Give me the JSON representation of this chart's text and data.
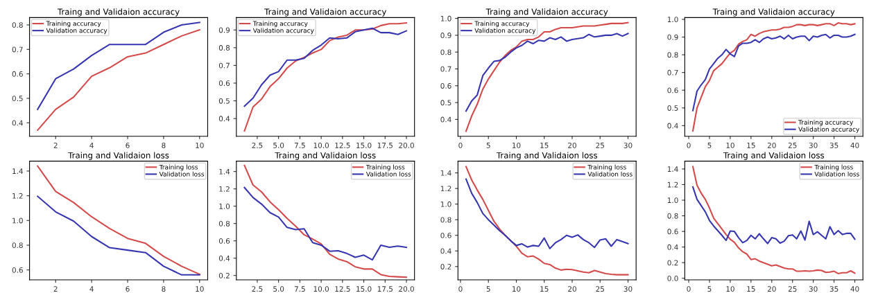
{
  "chart_data": [
    {
      "type": "line",
      "title": "Traing and Validaion accuracy",
      "x": [
        1,
        2,
        3,
        4,
        5,
        6,
        7,
        8,
        9,
        10
      ],
      "xlim": [
        0.55,
        10.45
      ],
      "ylim": [
        0.345,
        0.83
      ],
      "xticks": [
        2,
        4,
        6,
        8,
        10
      ],
      "yticks": [
        {
          "value": 0.4,
          "label": "0.4"
        },
        {
          "value": 0.5,
          "label": "0.5"
        },
        {
          "value": 0.6,
          "label": "0.6"
        },
        {
          "value": 0.7,
          "label": "0.7"
        },
        {
          "value": 0.8,
          "label": "0.8"
        }
      ],
      "legend": "top left",
      "grid": false,
      "series": [
        {
          "name": "Training accuracy",
          "color": "#d44a4a",
          "values": [
            0.37,
            0.455,
            0.505,
            0.59,
            0.625,
            0.67,
            0.685,
            0.72,
            0.755,
            0.78
          ]
        },
        {
          "name": "Validation accuracy",
          "color": "#3636b0",
          "values": [
            0.455,
            0.58,
            0.62,
            0.675,
            0.72,
            0.72,
            0.72,
            0.77,
            0.8,
            0.81
          ]
        }
      ]
    },
    {
      "type": "line",
      "title": "Traing and Validaion accuracy",
      "x": [
        1,
        2,
        3,
        4,
        5,
        6,
        7,
        8,
        9,
        10,
        11,
        12,
        13,
        14,
        15,
        16,
        17,
        18,
        19,
        20
      ],
      "xlim": [
        0.05,
        20.95
      ],
      "ylim": [
        0.3,
        0.97
      ],
      "xticks": [
        {
          "value": 2.5,
          "label": "2.5"
        },
        {
          "value": 5,
          "label": "5.0"
        },
        {
          "value": 7.5,
          "label": "7.5"
        },
        {
          "value": 10,
          "label": "10.0"
        },
        {
          "value": 12.5,
          "label": "12.5"
        },
        {
          "value": 15,
          "label": "15.0"
        },
        {
          "value": 17.5,
          "label": "17.5"
        },
        {
          "value": 20,
          "label": "20.0"
        }
      ],
      "yticks": [
        {
          "value": 0.4,
          "label": "0.4"
        },
        {
          "value": 0.5,
          "label": "0.5"
        },
        {
          "value": 0.6,
          "label": "0.6"
        },
        {
          "value": 0.7,
          "label": "0.7"
        },
        {
          "value": 0.8,
          "label": "0.8"
        },
        {
          "value": 0.9,
          "label": "0.9"
        }
      ],
      "legend": "top left",
      "grid": false,
      "series": [
        {
          "name": "Training accuracy",
          "color": "#d44a4a",
          "values": [
            0.33,
            0.465,
            0.51,
            0.58,
            0.625,
            0.685,
            0.725,
            0.745,
            0.77,
            0.79,
            0.84,
            0.86,
            0.87,
            0.9,
            0.9,
            0.905,
            0.925,
            0.935,
            0.935,
            0.94
          ]
        },
        {
          "name": "Validation accuracy",
          "color": "#3636b0",
          "values": [
            0.47,
            0.515,
            0.59,
            0.645,
            0.665,
            0.73,
            0.73,
            0.74,
            0.785,
            0.815,
            0.855,
            0.85,
            0.855,
            0.89,
            0.9,
            0.91,
            0.885,
            0.885,
            0.875,
            0.895
          ]
        }
      ]
    },
    {
      "type": "line",
      "title": "Traing and Validaion accuracy",
      "x": [
        1,
        2,
        3,
        4,
        5,
        6,
        7,
        8,
        9,
        10,
        11,
        12,
        13,
        14,
        15,
        16,
        17,
        18,
        19,
        20,
        21,
        22,
        23,
        24,
        25,
        26,
        27,
        28,
        29,
        30
      ],
      "xlim": [
        -0.45,
        31.45
      ],
      "ylim": [
        0.3,
        1.005
      ],
      "xticks": [
        0,
        5,
        10,
        15,
        20,
        25,
        30
      ],
      "yticks": [
        {
          "value": 0.4,
          "label": "0.4"
        },
        {
          "value": 0.5,
          "label": "0.5"
        },
        {
          "value": 0.6,
          "label": "0.6"
        },
        {
          "value": 0.7,
          "label": "0.7"
        },
        {
          "value": 0.8,
          "label": "0.8"
        },
        {
          "value": 0.9,
          "label": "0.9"
        },
        {
          "value": 1.0,
          "label": "1.0"
        }
      ],
      "legend": "top left",
      "grid": false,
      "series": [
        {
          "name": "Training accuracy",
          "color": "#d44a4a",
          "values": [
            0.33,
            0.42,
            0.49,
            0.58,
            0.64,
            0.69,
            0.74,
            0.78,
            0.81,
            0.83,
            0.865,
            0.875,
            0.875,
            0.89,
            0.92,
            0.92,
            0.935,
            0.945,
            0.945,
            0.945,
            0.95,
            0.955,
            0.955,
            0.955,
            0.96,
            0.965,
            0.97,
            0.97,
            0.97,
            0.975
          ]
        },
        {
          "name": "Validation accuracy",
          "color": "#3636b0",
          "values": [
            0.45,
            0.51,
            0.545,
            0.66,
            0.705,
            0.745,
            0.75,
            0.77,
            0.8,
            0.825,
            0.84,
            0.865,
            0.85,
            0.87,
            0.865,
            0.885,
            0.875,
            0.89,
            0.865,
            0.875,
            0.88,
            0.885,
            0.905,
            0.89,
            0.895,
            0.9,
            0.9,
            0.91,
            0.895,
            0.91
          ]
        }
      ]
    },
    {
      "type": "line",
      "title": "Traing and Validaion accuracy",
      "x": [
        1,
        2,
        3,
        4,
        5,
        6,
        7,
        8,
        9,
        10,
        11,
        12,
        13,
        14,
        15,
        16,
        17,
        18,
        19,
        20,
        21,
        22,
        23,
        24,
        25,
        26,
        27,
        28,
        29,
        30,
        31,
        32,
        33,
        34,
        35,
        36,
        37,
        38,
        39,
        40
      ],
      "xlim": [
        -0.95,
        41.95
      ],
      "ylim": [
        0.34,
        1.01
      ],
      "xticks": [
        0,
        5,
        10,
        15,
        20,
        25,
        30,
        35,
        40
      ],
      "yticks": [
        {
          "value": 0.4,
          "label": "0.4"
        },
        {
          "value": 0.5,
          "label": "0.5"
        },
        {
          "value": 0.6,
          "label": "0.6"
        },
        {
          "value": 0.7,
          "label": "0.7"
        },
        {
          "value": 0.8,
          "label": "0.8"
        },
        {
          "value": 0.9,
          "label": "0.9"
        },
        {
          "value": 1.0,
          "label": "1.0"
        }
      ],
      "legend": "bottom right",
      "grid": false,
      "series": [
        {
          "name": "Training accuracy",
          "color": "#d44a4a",
          "values": [
            0.37,
            0.5,
            0.56,
            0.62,
            0.655,
            0.71,
            0.73,
            0.75,
            0.78,
            0.81,
            0.825,
            0.86,
            0.875,
            0.885,
            0.915,
            0.905,
            0.92,
            0.93,
            0.935,
            0.94,
            0.94,
            0.945,
            0.955,
            0.955,
            0.96,
            0.97,
            0.97,
            0.965,
            0.97,
            0.97,
            0.965,
            0.97,
            0.975,
            0.975,
            0.965,
            0.98,
            0.975,
            0.975,
            0.97,
            0.975
          ]
        },
        {
          "name": "Validation accuracy",
          "color": "#3636b0",
          "values": [
            0.485,
            0.595,
            0.63,
            0.66,
            0.72,
            0.75,
            0.78,
            0.8,
            0.83,
            0.805,
            0.79,
            0.85,
            0.865,
            0.865,
            0.87,
            0.885,
            0.87,
            0.89,
            0.9,
            0.89,
            0.895,
            0.905,
            0.89,
            0.91,
            0.89,
            0.9,
            0.905,
            0.905,
            0.88,
            0.905,
            0.9,
            0.91,
            0.915,
            0.895,
            0.91,
            0.91,
            0.9,
            0.9,
            0.905,
            0.915
          ]
        }
      ]
    },
    {
      "type": "line",
      "title": "Traing and Validaion loss",
      "x": [
        1,
        2,
        3,
        4,
        5,
        6,
        7,
        8,
        9,
        10
      ],
      "xlim": [
        0.55,
        10.45
      ],
      "ylim": [
        0.52,
        1.48
      ],
      "xticks": [
        2,
        4,
        6,
        8,
        10
      ],
      "yticks": [
        {
          "value": 0.6,
          "label": "0.6"
        },
        {
          "value": 0.8,
          "label": "0.8"
        },
        {
          "value": 1.0,
          "label": "1.0"
        },
        {
          "value": 1.2,
          "label": "1.2"
        },
        {
          "value": 1.4,
          "label": "1.4"
        }
      ],
      "legend": "top right",
      "grid": false,
      "series": [
        {
          "name": "Training loss",
          "color": "#d44a4a",
          "values": [
            1.44,
            1.235,
            1.145,
            1.03,
            0.935,
            0.855,
            0.815,
            0.71,
            0.63,
            0.565
          ]
        },
        {
          "name": "Validation loss",
          "color": "#3636b0",
          "values": [
            1.195,
            1.07,
            0.995,
            0.87,
            0.78,
            0.76,
            0.74,
            0.63,
            0.56,
            0.56
          ]
        }
      ]
    },
    {
      "type": "line",
      "title": "Traing and Validaion loss",
      "x": [
        1,
        2,
        3,
        4,
        5,
        6,
        7,
        8,
        9,
        10,
        11,
        12,
        13,
        14,
        15,
        16,
        17,
        18,
        19,
        20
      ],
      "xlim": [
        0.05,
        20.95
      ],
      "ylim": [
        0.15,
        1.52
      ],
      "xticks": [
        {
          "value": 2.5,
          "label": "2.5"
        },
        {
          "value": 5,
          "label": "5.0"
        },
        {
          "value": 7.5,
          "label": "7.5"
        },
        {
          "value": 10,
          "label": "10.0"
        },
        {
          "value": 12.5,
          "label": "12.5"
        },
        {
          "value": 15,
          "label": "15.0"
        },
        {
          "value": 17.5,
          "label": "17.5"
        },
        {
          "value": 20,
          "label": "20.0"
        }
      ],
      "yticks": [
        {
          "value": 0.2,
          "label": "0.2"
        },
        {
          "value": 0.4,
          "label": "0.4"
        },
        {
          "value": 0.6,
          "label": "0.6"
        },
        {
          "value": 0.8,
          "label": "0.8"
        },
        {
          "value": 1.0,
          "label": "1.0"
        },
        {
          "value": 1.2,
          "label": "1.2"
        },
        {
          "value": 1.4,
          "label": "1.4"
        }
      ],
      "legend": "top right",
      "grid": false,
      "series": [
        {
          "name": "Training loss",
          "color": "#d44a4a",
          "values": [
            1.47,
            1.245,
            1.165,
            1.05,
            0.96,
            0.86,
            0.77,
            0.67,
            0.62,
            0.565,
            0.445,
            0.39,
            0.36,
            0.3,
            0.275,
            0.275,
            0.21,
            0.19,
            0.185,
            0.18
          ]
        },
        {
          "name": "Validation loss",
          "color": "#3636b0",
          "values": [
            1.215,
            1.1,
            1.025,
            0.925,
            0.875,
            0.755,
            0.73,
            0.74,
            0.58,
            0.55,
            0.48,
            0.485,
            0.455,
            0.41,
            0.435,
            0.38,
            0.55,
            0.525,
            0.54,
            0.525
          ]
        }
      ]
    },
    {
      "type": "line",
      "title": "Traing and Validaion loss",
      "x": [
        1,
        2,
        3,
        4,
        5,
        6,
        7,
        8,
        9,
        10,
        11,
        12,
        13,
        14,
        15,
        16,
        17,
        18,
        19,
        20,
        21,
        22,
        23,
        24,
        25,
        26,
        27,
        28,
        29,
        30
      ],
      "xlim": [
        -0.45,
        31.45
      ],
      "ylim": [
        0.03,
        1.55
      ],
      "xticks": [
        0,
        5,
        10,
        15,
        20,
        25,
        30
      ],
      "yticks": [
        {
          "value": 0.2,
          "label": "0.2"
        },
        {
          "value": 0.4,
          "label": "0.4"
        },
        {
          "value": 0.6,
          "label": "0.6"
        },
        {
          "value": 0.8,
          "label": "0.8"
        },
        {
          "value": 1.0,
          "label": "1.0"
        },
        {
          "value": 1.2,
          "label": "1.2"
        },
        {
          "value": 1.4,
          "label": "1.4"
        }
      ],
      "legend": "top right",
      "grid": false,
      "series": [
        {
          "name": "Training loss",
          "color": "#d44a4a",
          "values": [
            1.48,
            1.31,
            1.18,
            1.06,
            0.92,
            0.78,
            0.68,
            0.6,
            0.53,
            0.46,
            0.37,
            0.325,
            0.335,
            0.295,
            0.24,
            0.225,
            0.18,
            0.155,
            0.165,
            0.16,
            0.145,
            0.13,
            0.12,
            0.15,
            0.13,
            0.11,
            0.1,
            0.095,
            0.095,
            0.095
          ]
        },
        {
          "name": "Validation loss",
          "color": "#3636b0",
          "values": [
            1.32,
            1.14,
            1.02,
            0.88,
            0.8,
            0.73,
            0.66,
            0.6,
            0.53,
            0.47,
            0.49,
            0.45,
            0.47,
            0.46,
            0.565,
            0.43,
            0.505,
            0.545,
            0.6,
            0.575,
            0.605,
            0.545,
            0.505,
            0.445,
            0.54,
            0.555,
            0.46,
            0.545,
            0.52,
            0.495
          ]
        }
      ]
    },
    {
      "type": "line",
      "title": "Traing and Validaion loss",
      "x": [
        1,
        2,
        3,
        4,
        5,
        6,
        7,
        8,
        9,
        10,
        11,
        12,
        13,
        14,
        15,
        16,
        17,
        18,
        19,
        20,
        21,
        22,
        23,
        24,
        25,
        26,
        27,
        28,
        29,
        30,
        31,
        32,
        33,
        34,
        35,
        36,
        37,
        38,
        39,
        40
      ],
      "xlim": [
        -0.95,
        41.95
      ],
      "ylim": [
        -0.02,
        1.5
      ],
      "xticks": [
        0,
        5,
        10,
        15,
        20,
        25,
        30,
        35,
        40
      ],
      "yticks": [
        {
          "value": 0.0,
          "label": "0.0"
        },
        {
          "value": 0.2,
          "label": "0.2"
        },
        {
          "value": 0.4,
          "label": "0.4"
        },
        {
          "value": 0.6,
          "label": "0.6"
        },
        {
          "value": 0.8,
          "label": "0.8"
        },
        {
          "value": 1.0,
          "label": "1.0"
        },
        {
          "value": 1.2,
          "label": "1.2"
        },
        {
          "value": 1.4,
          "label": "1.4"
        }
      ],
      "legend": "top right",
      "grid": false,
      "series": [
        {
          "name": "Training loss",
          "color": "#d44a4a",
          "values": [
            1.43,
            1.19,
            1.09,
            1.01,
            0.9,
            0.77,
            0.7,
            0.63,
            0.56,
            0.5,
            0.46,
            0.39,
            0.34,
            0.31,
            0.24,
            0.25,
            0.22,
            0.2,
            0.18,
            0.16,
            0.17,
            0.15,
            0.13,
            0.12,
            0.12,
            0.09,
            0.09,
            0.095,
            0.09,
            0.095,
            0.105,
            0.1,
            0.075,
            0.08,
            0.09,
            0.06,
            0.07,
            0.07,
            0.095,
            0.065
          ]
        },
        {
          "name": "Validation loss",
          "color": "#3636b0",
          "values": [
            1.17,
            1.01,
            0.93,
            0.85,
            0.74,
            0.67,
            0.61,
            0.55,
            0.485,
            0.605,
            0.6,
            0.52,
            0.455,
            0.485,
            0.55,
            0.505,
            0.57,
            0.505,
            0.445,
            0.52,
            0.505,
            0.45,
            0.475,
            0.545,
            0.555,
            0.505,
            0.605,
            0.49,
            0.73,
            0.56,
            0.595,
            0.55,
            0.505,
            0.66,
            0.56,
            0.61,
            0.56,
            0.575,
            0.575,
            0.5
          ]
        }
      ]
    }
  ]
}
